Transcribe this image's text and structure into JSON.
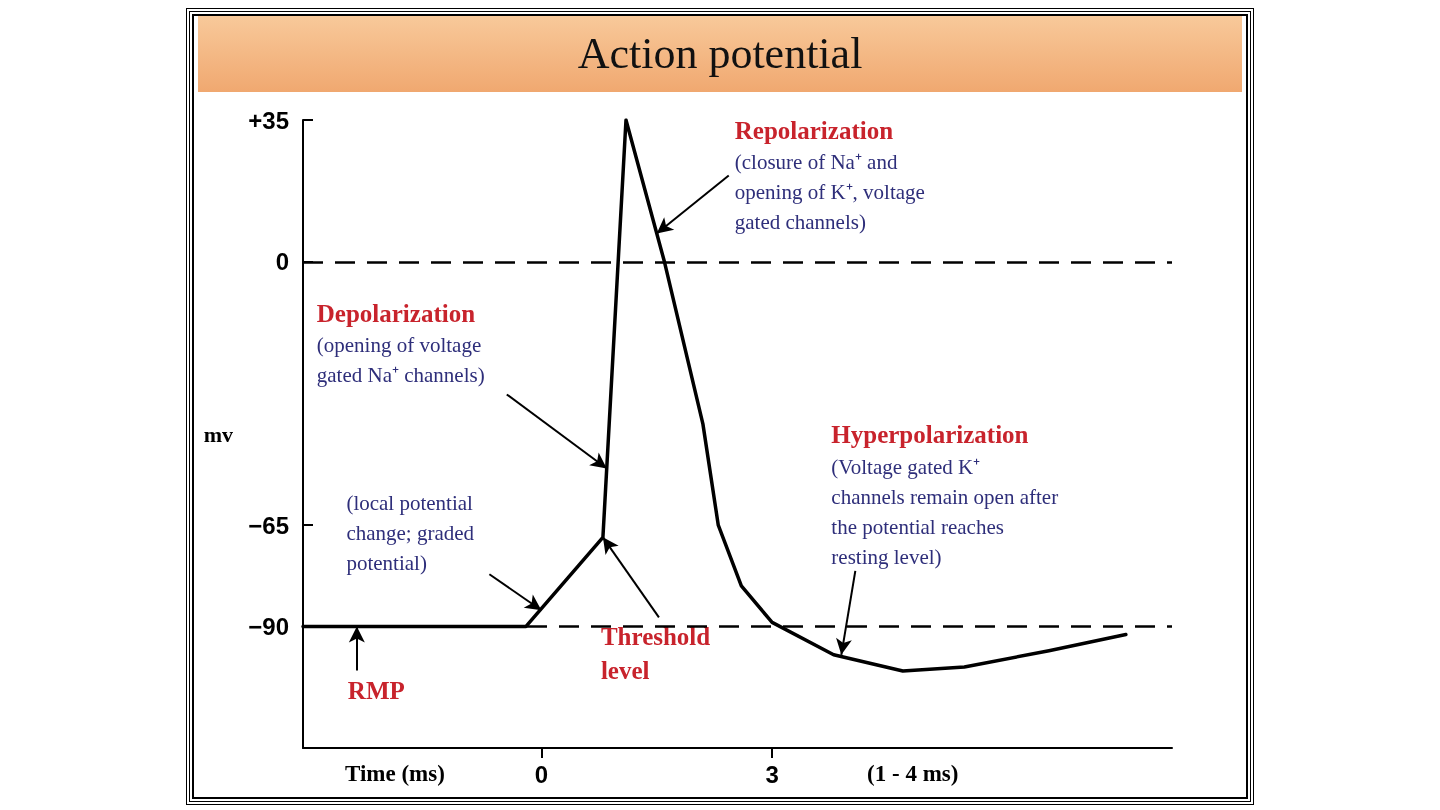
{
  "chart_data": {
    "type": "line",
    "title": "Action potential",
    "xlabel": "Time (ms)",
    "ylabel": "mv",
    "x": [
      -3.1,
      -0.2,
      0.8,
      1.1,
      1.6,
      2.1,
      2.3,
      2.6,
      3.0,
      3.8,
      4.7,
      5.5,
      6.6,
      7.6
    ],
    "series": [
      {
        "color": "#000000",
        "values": [
          -90,
          -90,
          -68,
          35,
          0,
          -40,
          -65,
          -80,
          -89,
          -97,
          -101,
          -100,
          -96,
          -92
        ]
      }
    ],
    "xlim": [
      -3.1,
      8.2
    ],
    "xticks": [
      0,
      3
    ],
    "ylim": [
      -120,
      35
    ],
    "yticks": [
      {
        "value": 35,
        "label": "+35"
      },
      0,
      {
        "value": -65,
        "label": "−65"
      },
      {
        "value": -90,
        "label": "−90"
      }
    ],
    "ref_lines": [
      {
        "axis": "y",
        "value": 0,
        "line_style": "dashed",
        "color": "#000000"
      },
      {
        "axis": "y",
        "value": -90,
        "line_style": "dashed",
        "color": "#000000"
      }
    ],
    "annotations": [
      {
        "text": "Repolarization\n(closure of Na⁺ and\nopening of K⁺, voltage\ngated channels)",
        "x": 1.5,
        "y": 7
      },
      {
        "text": "Depolarization\n(opening of voltage\ngated Na⁺ channels)",
        "x": 0.85,
        "y": -51
      },
      {
        "text": "(local potential\nchange; graded\npotential)",
        "x": 0,
        "y": -86
      },
      {
        "text": "Threshold\nlevel",
        "x": 0.8,
        "y": -68
      },
      {
        "text": "Hyperpolarization\n(Voltage gated K⁺\nchannels remain open after\nthe potential reaches\nresting level)",
        "x": 3.9,
        "y": -97
      },
      {
        "text": "RMP",
        "x": -2.4,
        "y": -90
      },
      "(1 - 4 ms)"
    ],
    "grid": false,
    "marker": "none",
    "line_style": "solid"
  }
}
